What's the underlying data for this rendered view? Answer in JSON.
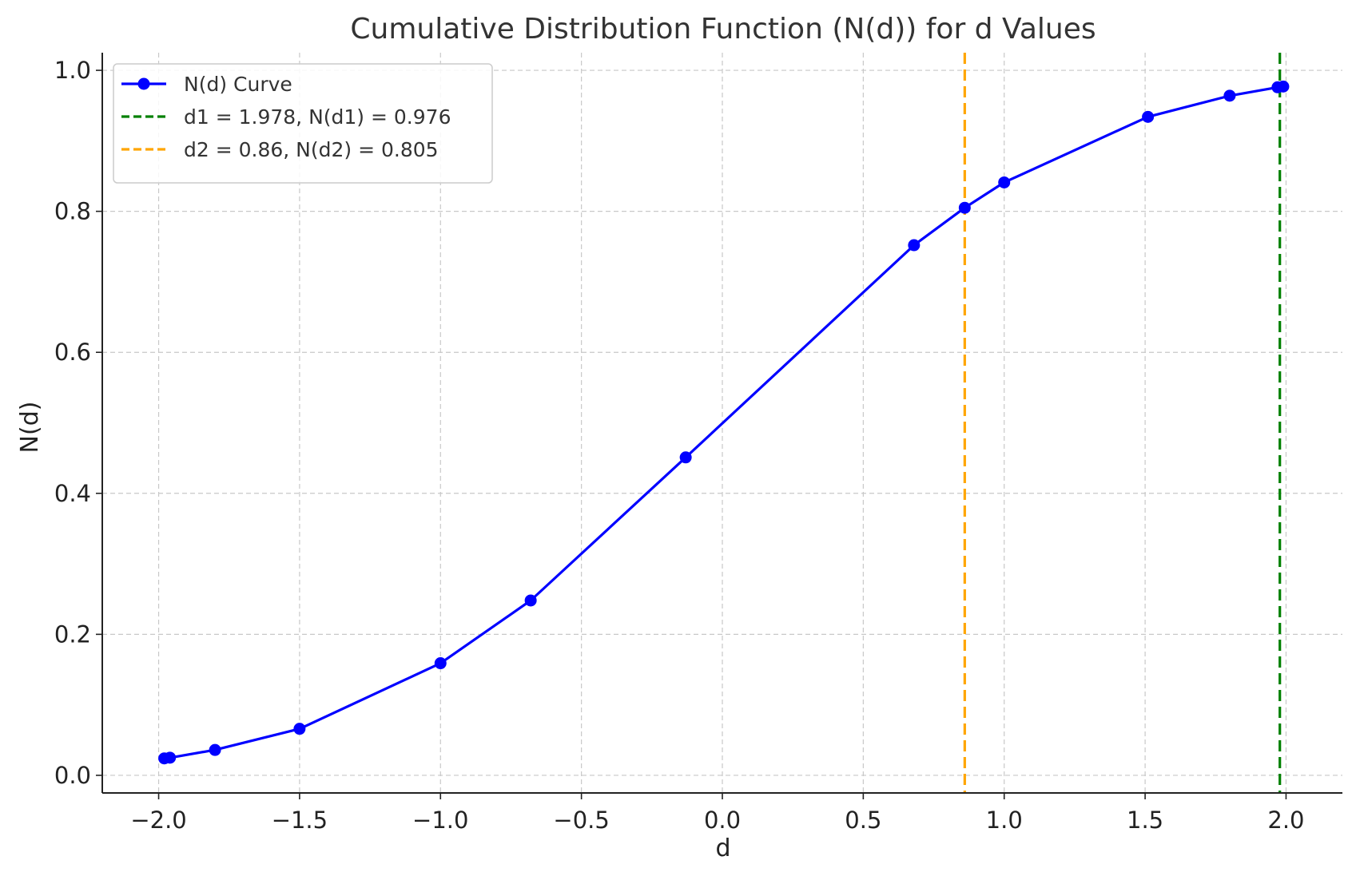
{
  "chart_data": {
    "type": "line",
    "title": "Cumulative Distribution Function (N(d)) for d Values",
    "xlabel": "d",
    "ylabel": "N(d)",
    "xlim": [
      -2.2,
      2.2
    ],
    "ylim": [
      -0.025,
      1.025
    ],
    "xticks": [
      -2.0,
      -1.5,
      -1.0,
      -0.5,
      0.0,
      0.5,
      1.0,
      1.5,
      2.0
    ],
    "xtick_labels": [
      "−2.0",
      "−1.5",
      "−1.0",
      "−0.5",
      "0.0",
      "0.5",
      "1.0",
      "1.5",
      "2.0"
    ],
    "yticks": [
      0.0,
      0.2,
      0.4,
      0.6,
      0.8,
      1.0
    ],
    "ytick_labels": [
      "0.0",
      "0.2",
      "0.4",
      "0.6",
      "0.8",
      "1.0"
    ],
    "grid": true,
    "legend_position": "top-left",
    "series": [
      {
        "name": "N(d) Curve",
        "color": "#0000ff",
        "marker": "circle",
        "x": [
          -1.98,
          -1.96,
          -1.8,
          -1.5,
          -1.0,
          -0.68,
          -0.13,
          0.68,
          0.86,
          1.0,
          1.51,
          1.8,
          1.97,
          1.99
        ],
        "y": [
          0.024,
          0.025,
          0.036,
          0.066,
          0.159,
          0.248,
          0.451,
          0.752,
          0.805,
          0.841,
          0.934,
          0.964,
          0.976,
          0.977
        ]
      }
    ],
    "reference_lines": [
      {
        "name": "d1 = 1.978, N(d1) = 0.976",
        "x": 1.978,
        "color": "#008000",
        "style": "dashed"
      },
      {
        "name": "d2 = 0.86, N(d2) = 0.805",
        "x": 0.86,
        "color": "#ffa500",
        "style": "dashed"
      }
    ]
  }
}
